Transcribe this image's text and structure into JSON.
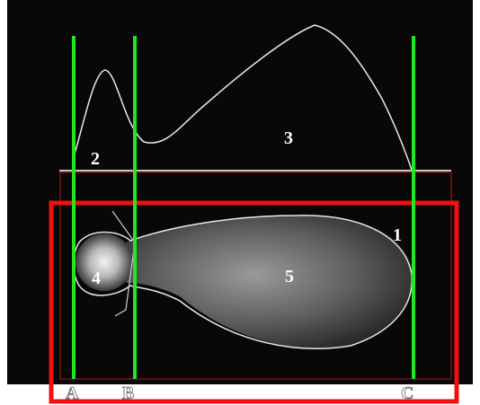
{
  "regions": [
    "1",
    "2",
    "3",
    "4",
    "5"
  ],
  "lines": [
    "A",
    "B",
    "C"
  ]
}
